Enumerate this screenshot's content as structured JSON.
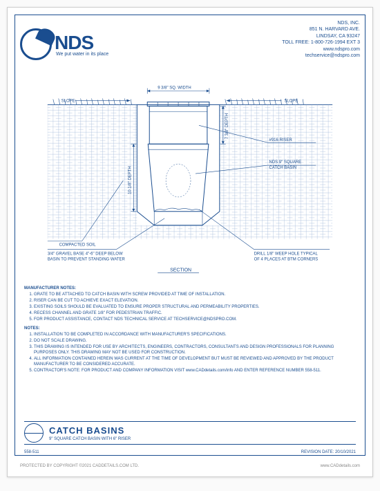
{
  "colors": {
    "primary": "#1a4d8f",
    "hatch": "#a0b8d8",
    "gravel": "#e8eef5",
    "page": "#ffffff",
    "bodyBg": "#fafafa",
    "footerGrey": "#888888"
  },
  "header": {
    "logoText": "NDS",
    "tagline": "We put water in its place",
    "company": "NDS, INC.",
    "addr1": "851 N. HARVARD AVE.",
    "addr2": "LINDSAY, CA 93247",
    "tollfree": "TOLL FREE: 1-800-726-1994 EXT 3",
    "web": "www.ndspro.com",
    "email": "techservice@ndspro.com"
  },
  "drawing": {
    "type": "engineering-section",
    "dim_width": "9 3/8\" SQ. WIDTH",
    "dim_depth_upper": "7 3/8\" DEPTH",
    "dim_depth_lower": "10 1/8\" DEPTH",
    "slope_left": "SLOPE",
    "slope_right": "SLOPE",
    "label_riser": "#916 RISER",
    "label_basin_1": "NDS 9\" SQUARE",
    "label_basin_2": "CATCH BASIN",
    "label_soil": "COMPACTED SOIL",
    "label_gravel_1": "3/4\" GRAVEL BASE 4\"-6\" DEEP BELOW",
    "label_gravel_2": "BASIN TO PREVENT STANDING WATER",
    "label_weep_1": "DRILL 1/8\" WEEP HOLE TYPICAL",
    "label_weep_2": "OF 4 PLACES AT BTM CORNERS",
    "section_label": "SECTION"
  },
  "mfrNotesHdr": "MANUFACTURER NOTES:",
  "mfrNotes": [
    "GRATE TO BE ATTACHED TO CATCH BASIN WITH SCREW PROVIDED AT TIME OF INSTALLATION.",
    "RISER CAN BE CUT TO ACHIEVE EXACT ELEVATION.",
    "EXISTING SOILS SHOULD BE EVALUATED TO ENSURE PROPER STRUCTURAL AND PERMEABILITY PROPERTIES.",
    "RECESS CHANNEL AND GRATE 1/8\" FOR PEDESTRIAN TRAFFIC.",
    "FOR PRODUCT ASSISTANCE, CONTACT NDS TECHNICAL SERVICE AT TECHSERVICE@NDSPRO.COM."
  ],
  "notesHdr": "NOTES:",
  "genNotes": [
    "INSTALLATION TO BE COMPLETED IN ACCORDANCE WITH MANUFACTURER'S SPECIFICATIONS.",
    "DO NOT SCALE DRAWING.",
    "THIS DRAWING IS INTENDED FOR USE BY ARCHITECTS, ENGINEERS, CONTRACTORS, CONSULTANTS AND DESIGN PROFESSIONALS FOR PLANNING PURPOSES ONLY.  THIS DRAWING MAY NOT BE USED FOR CONSTRUCTION.",
    "ALL INFORMATION CONTAINED HEREIN WAS CURRENT AT THE TIME OF DEVELOPMENT BUT MUST BE REVIEWED AND APPROVED BY THE PRODUCT MANUFACTURER TO BE CONSIDERED ACCURATE.",
    "CONTRACTOR'S NOTE: FOR PRODUCT AND COMPANY INFORMATION VISIT www.CADdetails.com/info AND ENTER REFERENCE NUMBER  558-511."
  ],
  "title": {
    "main": "CATCH BASINS",
    "sub": "9\" SQUARE CATCH BASIN WITH 6\" RISER"
  },
  "footerIn": {
    "ref": "558-511",
    "rev": "REVISION DATE: 20/10/2021"
  },
  "footerOut": {
    "copyright": "PROTECTED BY COPYRIGHT ©2021 CADDETAILS.COM LTD.",
    "link": "www.CADdetails.com"
  }
}
